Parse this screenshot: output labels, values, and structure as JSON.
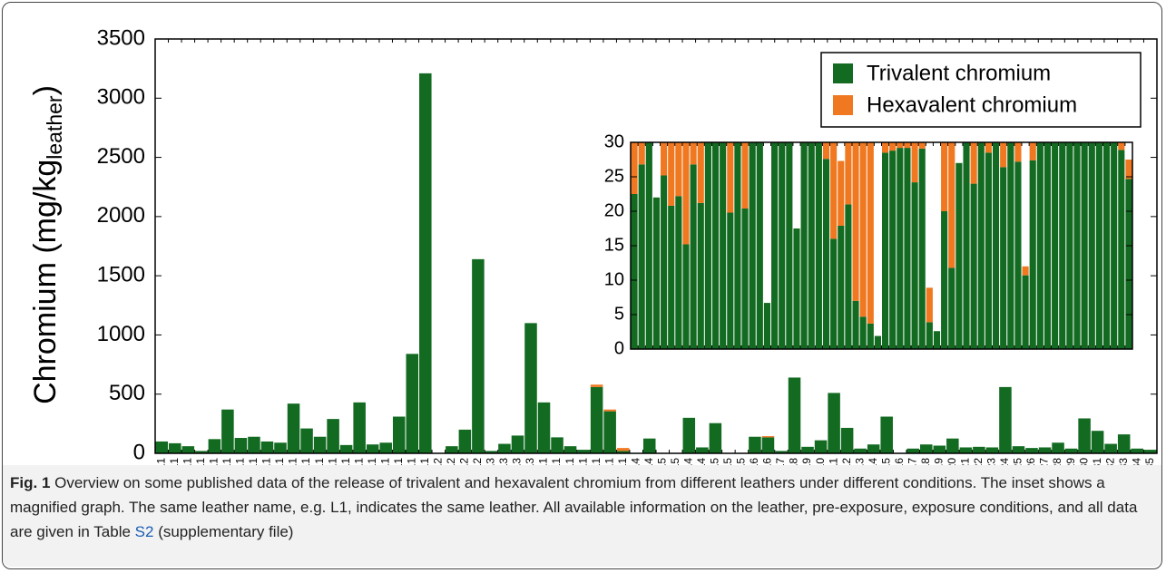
{
  "chart_data": [
    {
      "type": "bar",
      "stacked": true,
      "y_label": "Chromium (mg/kg",
      "y_label_sub": "leather",
      "y_label_end": ")",
      "categories": [
        "L1",
        "L1",
        "L1",
        "L1",
        "L1",
        "L1",
        "L1",
        "L1",
        "L1",
        "L1",
        "L1",
        "L1",
        "L1",
        "L1",
        "L1",
        "L1",
        "L1",
        "L1",
        "L1",
        "L1",
        "L1",
        "L2",
        "L2",
        "L2",
        "L2",
        "L3",
        "L3",
        "L3",
        "L3",
        "L1",
        "L1",
        "L1",
        "L1",
        "L1",
        "L1",
        "L1",
        "L4",
        "L4",
        "L5",
        "L5",
        "L4",
        "L4",
        "L5",
        "L5",
        "L5",
        "L6",
        "L6",
        "L7",
        "L8",
        "L9",
        "L10",
        "L11",
        "L12",
        "L13",
        "L14",
        "L15",
        "L16",
        "L17",
        "L18",
        "L19",
        "L20",
        "L21",
        "L22",
        "L23",
        "L24",
        "L25",
        "L26",
        "L27",
        "L28",
        "L29",
        "L30",
        "L31",
        "L32",
        "L33",
        "L34",
        "L35"
      ],
      "series": [
        {
          "name": "Trivalent chromium",
          "color": "#136b22",
          "values": [
            100,
            85,
            60,
            20,
            120,
            370,
            130,
            140,
            100,
            90,
            420,
            210,
            140,
            290,
            70,
            430,
            75,
            90,
            310,
            840,
            3210,
            0,
            60,
            200,
            1640,
            20,
            80,
            150,
            1100,
            430,
            135,
            60,
            30,
            560,
            355,
            20,
            0,
            125,
            0,
            0,
            300,
            50,
            255,
            0,
            0,
            140,
            135,
            20,
            640,
            55,
            110,
            510,
            215,
            40,
            75,
            310,
            0,
            40,
            75,
            65,
            125,
            50,
            55,
            50,
            560,
            60,
            45,
            50,
            90,
            40,
            295,
            190,
            80,
            160,
            40,
            30
          ]
        },
        {
          "name": "Hexavalent chromium",
          "color": "#f07820",
          "values": [
            0,
            0,
            0,
            0,
            0,
            0,
            0,
            0,
            0,
            0,
            0,
            0,
            0,
            0,
            0,
            0,
            0,
            0,
            0,
            0,
            0,
            0,
            0,
            0,
            0,
            0,
            0,
            0,
            0,
            0,
            0,
            0,
            0,
            20,
            15,
            25,
            0,
            0,
            0,
            0,
            0,
            0,
            0,
            0,
            0,
            0,
            10,
            0,
            0,
            0,
            0,
            0,
            0,
            0,
            0,
            0,
            0,
            0,
            0,
            0,
            0,
            0,
            0,
            0,
            0,
            0,
            0,
            0,
            0,
            0,
            0,
            0,
            0,
            0,
            0,
            0
          ]
        }
      ],
      "ylim": [
        0,
        3500
      ],
      "yticks": [
        0,
        500,
        1000,
        1500,
        2000,
        2500,
        3000,
        3500
      ],
      "legend": "upper right"
    },
    {
      "type": "bar",
      "stacked": true,
      "series": [
        {
          "color": "#136b22",
          "values": [
            22.5,
            26.8,
            30,
            22,
            25.2,
            20.8,
            22.2,
            15.2,
            26.8,
            21.2,
            30,
            30,
            30,
            19.8,
            30,
            20.4,
            30,
            30,
            6.7,
            30,
            30,
            30,
            17.5,
            30,
            30,
            30,
            27.6,
            16,
            17.9,
            21,
            7,
            4.7,
            3.7,
            1.9,
            28.5,
            28.8,
            29.2,
            29.2,
            24.2,
            29.1,
            3.9,
            2.6,
            20,
            11.8,
            27,
            30,
            24,
            30,
            28.5,
            30,
            26.4,
            30,
            27.2,
            10.7,
            27.4,
            30,
            30,
            30,
            30,
            30,
            30,
            30,
            30,
            30,
            30,
            30,
            28.9,
            24.7
          ]
        },
        {
          "color": "#f07820",
          "values": [
            7.5,
            3.2,
            0,
            0,
            4.8,
            9.2,
            7.8,
            14.8,
            3.2,
            8.8,
            0,
            0,
            0,
            10.2,
            0,
            9.6,
            0,
            0,
            0,
            0,
            0,
            0,
            0,
            0,
            0,
            0,
            2.4,
            14,
            9.4,
            9,
            23,
            25.3,
            26.3,
            0,
            1.5,
            1.2,
            0.8,
            0.8,
            5.8,
            0.9,
            5,
            0,
            10,
            18.2,
            0,
            0,
            6,
            0,
            1.5,
            0,
            3.6,
            0,
            2.8,
            1.3,
            2.6,
            0,
            0,
            0,
            0,
            0,
            0,
            0,
            0,
            0,
            0,
            0,
            1.1,
            2.8
          ]
        }
      ],
      "ylim": [
        0,
        30
      ],
      "yticks": [
        0,
        5,
        10,
        15,
        20,
        25,
        30
      ]
    }
  ],
  "caption": {
    "label": "Fig. 1",
    "text": " Overview on some published data of the release of trivalent and hexavalent chromium from different leathers under different conditions. The inset shows a magnified graph. The same leather name, e.g. L1, indicates the same leather. All available information on the leather, pre-exposure, exposure conditions, and all data are given in Table ",
    "link": "S2",
    "text_end": " (supplementary file)"
  }
}
